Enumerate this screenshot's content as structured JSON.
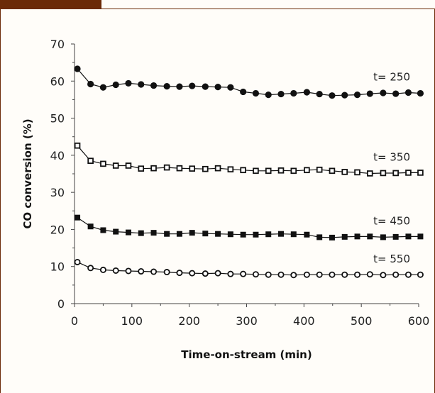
{
  "chart_data": {
    "type": "line",
    "title": "",
    "xlabel": "Time-on-stream (min)",
    "ylabel": "CO conversion (%)",
    "xlim": [
      0,
      600
    ],
    "ylim": [
      0,
      70
    ],
    "xticks": [
      "0",
      "100",
      "200",
      "300",
      "400",
      "500",
      "600"
    ],
    "yticks": [
      "0",
      "10",
      "20",
      "30",
      "40",
      "50",
      "60",
      "70"
    ],
    "grid": false,
    "legend": "none",
    "x": [
      5,
      28,
      50,
      72,
      94,
      116,
      138,
      161,
      183,
      205,
      228,
      250,
      272,
      294,
      316,
      338,
      360,
      382,
      405,
      427,
      449,
      471,
      493,
      515,
      538,
      560,
      582,
      603
    ],
    "series": [
      {
        "name": "t= 250",
        "marker": "filled-circle",
        "values": [
          63.3,
          59.2,
          58.3,
          59.0,
          59.4,
          59.1,
          58.8,
          58.6,
          58.5,
          58.7,
          58.5,
          58.4,
          58.3,
          57.1,
          56.7,
          56.3,
          56.5,
          56.7,
          57.0,
          56.5,
          56.1,
          56.2,
          56.3,
          56.6,
          56.8,
          56.6,
          56.9,
          56.7
        ]
      },
      {
        "name": "t= 350",
        "marker": "open-square",
        "values": [
          42.6,
          38.5,
          37.7,
          37.2,
          37.2,
          36.4,
          36.5,
          36.7,
          36.5,
          36.4,
          36.3,
          36.5,
          36.2,
          36.0,
          35.8,
          35.8,
          35.9,
          35.8,
          36.0,
          36.1,
          35.8,
          35.5,
          35.4,
          35.1,
          35.2,
          35.2,
          35.3,
          35.3
        ]
      },
      {
        "name": "t= 450",
        "marker": "filled-square",
        "values": [
          23.2,
          20.8,
          19.8,
          19.4,
          19.2,
          19.0,
          19.1,
          18.8,
          18.8,
          19.1,
          18.9,
          18.8,
          18.7,
          18.6,
          18.6,
          18.7,
          18.8,
          18.7,
          18.6,
          17.9,
          17.8,
          18.0,
          18.1,
          18.1,
          17.9,
          18.0,
          18.1,
          18.1
        ]
      },
      {
        "name": "t= 550",
        "marker": "open-circle",
        "values": [
          11.2,
          9.6,
          9.1,
          8.9,
          8.8,
          8.7,
          8.6,
          8.5,
          8.3,
          8.2,
          8.1,
          8.2,
          8.0,
          8.0,
          7.9,
          7.8,
          7.8,
          7.7,
          7.8,
          7.8,
          7.8,
          7.8,
          7.8,
          7.9,
          7.7,
          7.8,
          7.8,
          7.8
        ]
      }
    ]
  },
  "colors": {
    "frame": "#6b2a08",
    "series": "#111111",
    "axis": "#444444"
  }
}
